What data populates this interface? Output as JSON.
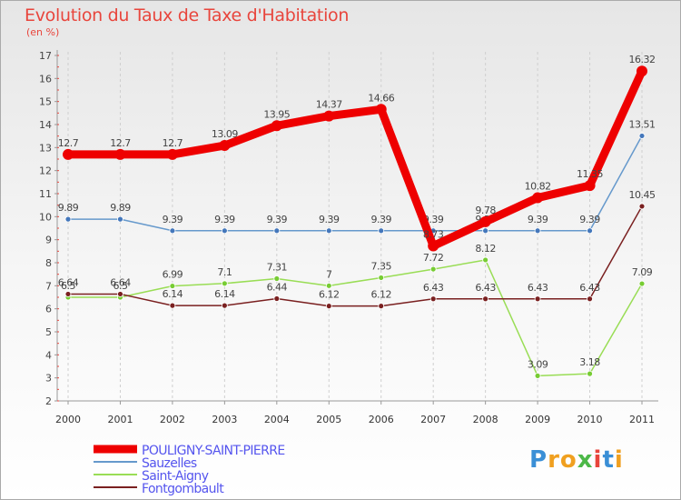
{
  "chart_data": {
    "type": "line",
    "title": "Evolution du Taux de Taxe d'Habitation",
    "subtitle": "(en %)",
    "x": [
      "2000",
      "2001",
      "2002",
      "2003",
      "2004",
      "2005",
      "2006",
      "2007",
      "2008",
      "2009",
      "2010",
      "2011"
    ],
    "ylim": [
      2,
      17
    ],
    "yticks": [
      2,
      3,
      4,
      5,
      6,
      7,
      8,
      9,
      10,
      11,
      12,
      13,
      14,
      15,
      16,
      17
    ],
    "series": [
      {
        "name": "Saint-Aigny",
        "color": "#99dd55",
        "dot": "#77cc33",
        "values": [
          6.5,
          6.5,
          6.99,
          7.1,
          7.31,
          7.0,
          7.35,
          7.72,
          8.12,
          3.09,
          3.18,
          7.09
        ],
        "labels": [
          "6.5",
          "6.5",
          "6.99",
          "7.1",
          "7.31",
          "7",
          "7.35",
          "7.72",
          "8.12",
          "3.09",
          "3.18",
          "7.09"
        ]
      },
      {
        "name": "Fontgombault",
        "color": "#7a2020",
        "dot": "#7a2020",
        "values": [
          6.64,
          6.64,
          6.14,
          6.14,
          6.44,
          6.12,
          6.12,
          6.43,
          6.43,
          6.43,
          6.43,
          10.45
        ],
        "labels": [
          "6.64",
          "6.64",
          "6.14",
          "6.14",
          "6.44",
          "6.12",
          "6.12",
          "6.43",
          "6.43",
          "6.43",
          "6.43",
          "10.45"
        ]
      },
      {
        "name": "Sauzelles",
        "color": "#6699cc",
        "dot": "#4477bb",
        "values": [
          9.89,
          9.89,
          9.39,
          9.39,
          9.39,
          9.39,
          9.39,
          9.39,
          9.39,
          9.39,
          9.39,
          13.51
        ],
        "labels": [
          "9.89",
          "9.89",
          "9.39",
          "9.39",
          "9.39",
          "9.39",
          "9.39",
          "9.39",
          "9.39",
          "9.39",
          "9.39",
          "13.51"
        ]
      },
      {
        "name": "POULIGNY-SAINT-PIERRE",
        "color": "#ee0000",
        "dot": "#ee0000",
        "values": [
          12.7,
          12.7,
          12.7,
          13.09,
          13.95,
          14.37,
          14.66,
          8.73,
          9.78,
          10.82,
          11.35,
          16.32
        ],
        "labels": [
          "12.7",
          "12.7",
          "12.7",
          "13.09",
          "13.95",
          "14.37",
          "14.66",
          "8.73",
          "9.78",
          "10.82",
          "11.35",
          "16.32"
        ]
      }
    ],
    "legend": [
      "POULIGNY-SAINT-PIERRE",
      "Sauzelles",
      "Saint-Aigny",
      "Fontgombault"
    ]
  },
  "logo": {
    "p": "P",
    "r": "r",
    "o": "o",
    "x": "x",
    "i": "i",
    "t": "t",
    "i2": "i"
  }
}
